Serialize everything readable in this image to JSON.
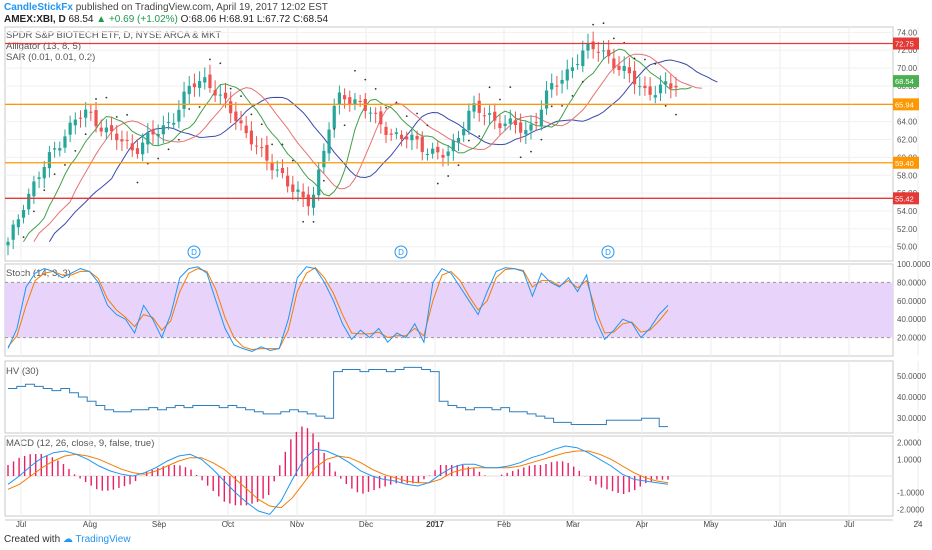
{
  "header": {
    "publisher": "CandleStickFx",
    "published_text": "published on TradingView.com, April 19, 2017 12:02 EST"
  },
  "symbol_line": {
    "symbol": "AMEX:XBI, D",
    "last": "68.54",
    "change": "+0.69 (+1.02%)",
    "ohlc": "O:68.06 H:68.91 L:67.72 C:68.54"
  },
  "main_pane": {
    "title": "SPDR S&P BIOTECH ETF, D, NYSE ARCA & MKT",
    "indicator_1": "Alligator (13, 8, 5)",
    "indicator_2": "SAR (0.01, 0.01, 0.2)"
  },
  "stoch_pane": {
    "title": "Stoch (14, 3, 3)"
  },
  "hv_pane": {
    "title": "HV (30)"
  },
  "macd_pane": {
    "title": "MACD (12, 26, close, 9, false, true)"
  },
  "footer": {
    "created_with": "Created with",
    "brand": "TradingView"
  },
  "colors": {
    "candle_up": "#26a69a",
    "candle_down": "#ef5350",
    "resistance": "#e53935",
    "support": "#ff9800",
    "jaw": "#3949ab",
    "teeth": "#e57373",
    "lips": "#43a047",
    "stoch_k": "#2196f3",
    "stoch_d": "#f57c00",
    "stoch_band": "#e8d4fb",
    "hv": "#2e7fbd",
    "macd": "#2196f3",
    "signal": "#f57c00",
    "hist": "#e91e63"
  },
  "chart_data": [
    {
      "type": "candlestick",
      "pane": "price",
      "x_tick_labels": [
        "Jul",
        "Aug",
        "Sep",
        "Oct",
        "Nov",
        "Dec",
        "2017",
        "Feb",
        "Mar",
        "Apr",
        "May",
        "Jun",
        "Jul",
        "24"
      ],
      "y_tick_labels": [
        "50.00",
        "52.00",
        "54.00",
        "56.00",
        "58.00",
        "60.00",
        "62.00",
        "64.00",
        "66.00",
        "68.00",
        "70.00",
        "72.00",
        "74.00"
      ],
      "ylim": [
        48.4,
        74.6
      ],
      "close_path": [
        50.2,
        52.5,
        55.0,
        56.5,
        58.0,
        59.5,
        61.0,
        62.5,
        63.5,
        64.5,
        65.0,
        64.3,
        63.5,
        62.5,
        62.0,
        61.5,
        61.0,
        61.5,
        62.2,
        62.8,
        63.5,
        64.5,
        66.0,
        67.5,
        68.5,
        68.8,
        68.0,
        66.5,
        65.5,
        64.5,
        63.2,
        62.0,
        60.5,
        59.5,
        59.0,
        58.0,
        56.5,
        55.5,
        54.8,
        56.5,
        60.0,
        64.0,
        66.5,
        67.0,
        66.5,
        65.8,
        65.0,
        64.0,
        63.5,
        62.5,
        62.0,
        62.2,
        61.8,
        61.2,
        60.5,
        60.0,
        60.5,
        62.0,
        64.0,
        65.5,
        65.0,
        64.8,
        64.2,
        64.0,
        63.5,
        63.2,
        63.0,
        64.0,
        66.0,
        67.5,
        68.5,
        69.5,
        70.5,
        71.5,
        72.0,
        72.5,
        71.8,
        70.5,
        69.5,
        69.2,
        68.8,
        67.5,
        67.0,
        67.5,
        68.2,
        68.5
      ],
      "gaps": [
        {
          "label": "D",
          "x_tick": "Sep"
        },
        {
          "label": "D",
          "x_tick": "Dec"
        },
        {
          "label": "D",
          "x_tick": "Mar"
        }
      ],
      "levels": [
        {
          "label": "72.75",
          "value": 72.75,
          "kind": "resistance"
        },
        {
          "label": "65.94",
          "value": 65.94,
          "kind": "support"
        },
        {
          "label": "59.40",
          "value": 59.4,
          "kind": "support"
        },
        {
          "label": "55.42",
          "value": 55.42,
          "kind": "resistance"
        }
      ],
      "last_price_label": "68.54",
      "last_price": 68.54,
      "series": [
        {
          "name": "Alligator (13, 8, 5)",
          "type": "candlestick"
        },
        {
          "name": "SAR (0.01, 0.01, 0.2)",
          "type": "scatter"
        }
      ]
    },
    {
      "type": "line",
      "pane": "stoch",
      "y_tick_labels": [
        "20.0000",
        "40.0000",
        "60.0000",
        "80.0000",
        "100.0000"
      ],
      "ylim": [
        0,
        100
      ],
      "band": [
        20,
        80
      ],
      "k_values": [
        8,
        30,
        75,
        90,
        95,
        92,
        85,
        90,
        95,
        92,
        80,
        55,
        45,
        40,
        25,
        55,
        40,
        20,
        45,
        85,
        95,
        97,
        90,
        60,
        30,
        12,
        8,
        5,
        10,
        6,
        8,
        40,
        85,
        97,
        95,
        80,
        60,
        35,
        18,
        28,
        20,
        30,
        15,
        25,
        20,
        35,
        15,
        80,
        95,
        90,
        75,
        60,
        45,
        70,
        92,
        96,
        95,
        92,
        65,
        90,
        80,
        75,
        85,
        70,
        88,
        40,
        18,
        28,
        40,
        36,
        20,
        30,
        45,
        55
      ],
      "d_values": [
        10,
        22,
        55,
        82,
        90,
        92,
        88,
        88,
        92,
        92,
        84,
        62,
        50,
        42,
        32,
        45,
        42,
        28,
        38,
        70,
        90,
        95,
        92,
        72,
        42,
        20,
        10,
        7,
        8,
        8,
        8,
        28,
        70,
        90,
        96,
        85,
        68,
        45,
        25,
        24,
        24,
        26,
        20,
        22,
        22,
        30,
        22,
        60,
        88,
        92,
        82,
        65,
        50,
        60,
        85,
        94,
        95,
        93,
        75,
        82,
        82,
        76,
        82,
        74,
        82,
        50,
        25,
        26,
        35,
        37,
        26,
        28,
        38,
        50
      ]
    },
    {
      "type": "line",
      "pane": "hv",
      "y_tick_labels": [
        "30.0000",
        "40.0000",
        "50.0000"
      ],
      "ylim": [
        23,
        57
      ],
      "values": [
        44,
        45,
        46,
        45,
        44,
        43,
        44,
        42,
        40,
        38,
        36,
        34,
        33,
        33,
        34,
        34,
        35,
        34,
        35,
        36,
        35,
        36,
        36,
        36,
        35,
        36,
        35,
        34,
        33,
        32,
        32,
        33,
        34,
        33,
        32,
        31,
        30,
        52,
        53,
        53,
        52,
        53,
        53,
        52,
        53,
        54,
        54,
        53,
        52,
        38,
        36,
        35,
        34,
        35,
        35,
        34,
        35,
        33,
        33,
        32,
        31,
        30,
        28,
        28,
        27,
        27,
        27,
        27,
        29,
        29,
        29,
        29,
        30,
        30,
        26,
        26
      ]
    },
    {
      "type": "line",
      "pane": "macd",
      "y_tick_labels": [
        "-2.0000",
        "-1.0000",
        "1.0000",
        "2.0000"
      ],
      "ylim": [
        -2.4,
        2.4
      ],
      "macd_values": [
        -0.5,
        0.0,
        0.6,
        1.1,
        1.4,
        1.5,
        1.3,
        1.0,
        0.6,
        0.3,
        0.1,
        0.0,
        0.2,
        0.5,
        0.9,
        1.2,
        1.3,
        1.0,
        0.4,
        -0.3,
        -1.0,
        -1.6,
        -2.1,
        -2.3,
        -1.5,
        -0.2,
        1.0,
        1.6,
        1.5,
        1.2,
        0.8,
        0.3,
        0.0,
        -0.2,
        -0.3,
        -0.5,
        -0.6,
        -0.4,
        0.1,
        0.5,
        0.7,
        0.7,
        0.5,
        0.5,
        0.6,
        0.8,
        1.1,
        1.3,
        1.6,
        1.8,
        1.7,
        1.4,
        1.0,
        0.6,
        0.1,
        -0.2,
        -0.3,
        -0.4,
        -0.5
      ],
      "signal_values": [
        -0.8,
        -0.5,
        0.0,
        0.5,
        0.9,
        1.2,
        1.3,
        1.2,
        1.0,
        0.7,
        0.4,
        0.2,
        0.1,
        0.3,
        0.6,
        0.9,
        1.1,
        1.1,
        0.8,
        0.4,
        -0.2,
        -0.8,
        -1.4,
        -1.8,
        -1.9,
        -1.3,
        -0.4,
        0.5,
        1.0,
        1.2,
        1.1,
        0.8,
        0.4,
        0.1,
        -0.1,
        -0.3,
        -0.4,
        -0.4,
        -0.2,
        0.2,
        0.4,
        0.5,
        0.5,
        0.5,
        0.5,
        0.6,
        0.8,
        1.0,
        1.2,
        1.4,
        1.5,
        1.5,
        1.3,
        1.0,
        0.6,
        0.2,
        -0.1,
        -0.3,
        -0.4
      ]
    }
  ]
}
